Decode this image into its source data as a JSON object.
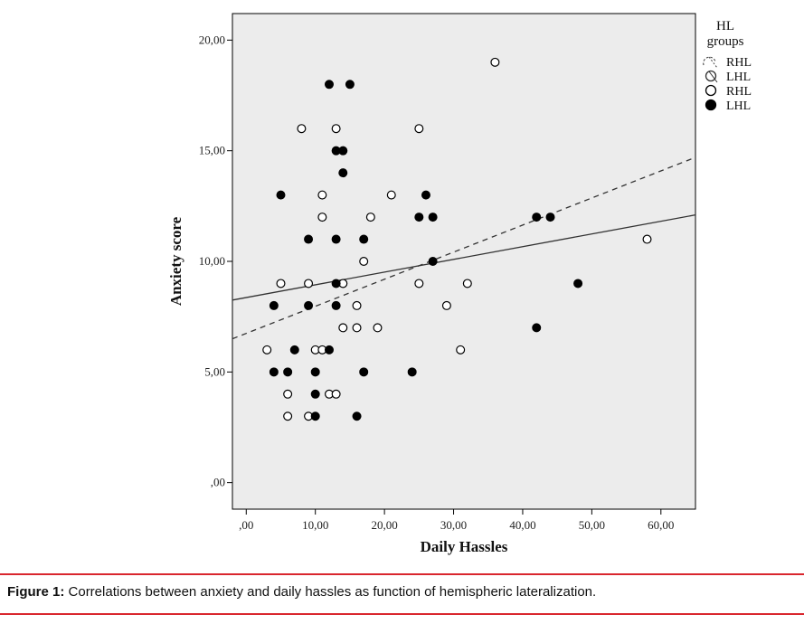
{
  "caption": {
    "label": "Figure 1:",
    "text": "Correlations between anxiety and daily hassles as function of hemispheric lateralization."
  },
  "chart_data": {
    "type": "scatter",
    "xlabel": "Daily Hassles",
    "ylabel": "Anxiety score",
    "xlim": [
      -2,
      65
    ],
    "ylim": [
      -1.2,
      21.2
    ],
    "x_ticks": [
      0,
      10,
      20,
      30,
      40,
      50,
      60
    ],
    "x_tick_labels": [
      ",00",
      "10,00",
      "20,00",
      "30,00",
      "40,00",
      "50,00",
      "60,00"
    ],
    "y_ticks": [
      0,
      5,
      10,
      15,
      20
    ],
    "y_tick_labels": [
      ",00",
      "5,00",
      "10,00",
      "15,00",
      "20,00"
    ],
    "grid": false,
    "background": "#ececec",
    "legend": {
      "title": "HL groups",
      "placement": "right",
      "entries": [
        {
          "label": "RHL",
          "marker": "dashed-line"
        },
        {
          "label": "LHL",
          "marker": "solid-line"
        },
        {
          "label": "RHL",
          "marker": "open-circle"
        },
        {
          "label": "LHL",
          "marker": "filled-circle"
        }
      ]
    },
    "series": [
      {
        "name": "RHL",
        "marker": "open-circle",
        "points": [
          [
            36,
            19
          ],
          [
            8,
            16
          ],
          [
            13,
            16
          ],
          [
            25,
            16
          ],
          [
            11,
            13
          ],
          [
            21,
            13
          ],
          [
            11,
            12
          ],
          [
            18,
            12
          ],
          [
            58,
            11
          ],
          [
            17,
            10
          ],
          [
            5,
            9
          ],
          [
            9,
            9
          ],
          [
            14,
            9
          ],
          [
            25,
            9
          ],
          [
            32,
            9
          ],
          [
            16,
            8
          ],
          [
            29,
            8
          ],
          [
            14,
            7
          ],
          [
            16,
            7
          ],
          [
            19,
            7
          ],
          [
            3,
            6
          ],
          [
            10,
            6
          ],
          [
            11,
            6
          ],
          [
            31,
            6
          ],
          [
            6,
            4
          ],
          [
            12,
            4
          ],
          [
            13,
            4
          ],
          [
            6,
            3
          ],
          [
            9,
            3
          ]
        ],
        "fit_line": {
          "style": "dashed",
          "x": [
            -2,
            65
          ],
          "y": [
            6.5,
            14.7
          ]
        }
      },
      {
        "name": "LHL",
        "marker": "filled-circle",
        "points": [
          [
            12,
            18
          ],
          [
            15,
            18
          ],
          [
            13,
            15
          ],
          [
            14,
            15
          ],
          [
            14,
            14
          ],
          [
            5,
            13
          ],
          [
            26,
            13
          ],
          [
            25,
            12
          ],
          [
            27,
            12
          ],
          [
            42,
            12
          ],
          [
            44,
            12
          ],
          [
            9,
            11
          ],
          [
            13,
            11
          ],
          [
            17,
            11
          ],
          [
            27,
            10
          ],
          [
            13,
            9
          ],
          [
            48,
            9
          ],
          [
            4,
            8
          ],
          [
            9,
            8
          ],
          [
            13,
            8
          ],
          [
            42,
            7
          ],
          [
            7,
            6
          ],
          [
            12,
            6
          ],
          [
            4,
            5
          ],
          [
            6,
            5
          ],
          [
            10,
            5
          ],
          [
            17,
            5
          ],
          [
            24,
            5
          ],
          [
            10,
            4
          ],
          [
            10,
            3
          ],
          [
            16,
            3
          ]
        ],
        "fit_line": {
          "style": "solid",
          "x": [
            -2,
            65
          ],
          "y": [
            8.25,
            12.1
          ]
        }
      }
    ]
  }
}
